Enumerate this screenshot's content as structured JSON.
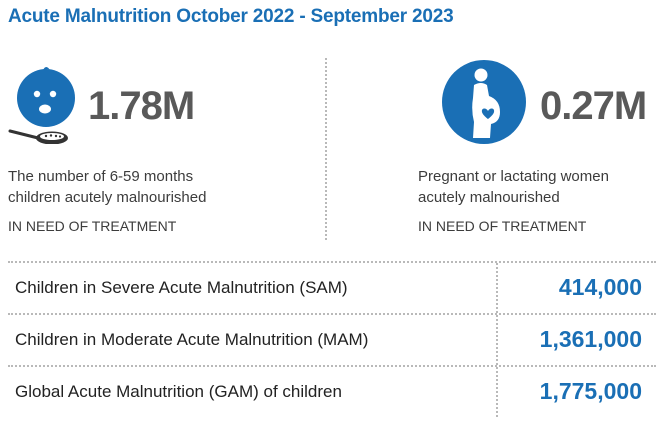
{
  "title": "Acute Malnutrition October 2022 - September 2023",
  "colors": {
    "accent": "#1a6fb5",
    "number": "#595959"
  },
  "stats": [
    {
      "icon": "child-feeding-icon",
      "value": "1.78M",
      "description_line1": "The number of 6-59 months",
      "description_line2": "children acutely malnourished",
      "need": "IN NEED OF TREATMENT"
    },
    {
      "icon": "pregnant-woman-icon",
      "value": "0.27M",
      "description_line1": "Pregnant or lactating women",
      "description_line2": "acutely malnourished",
      "need": "IN NEED OF TREATMENT"
    }
  ],
  "table": {
    "rows": [
      {
        "label": "Children in Severe Acute Malnutrition (SAM)",
        "value": "414,000"
      },
      {
        "label": "Children in Moderate Acute Malnutrition (MAM)",
        "value": "1,361,000"
      },
      {
        "label": "Global Acute Malnutrition (GAM) of children",
        "value": "1,775,000"
      }
    ]
  }
}
